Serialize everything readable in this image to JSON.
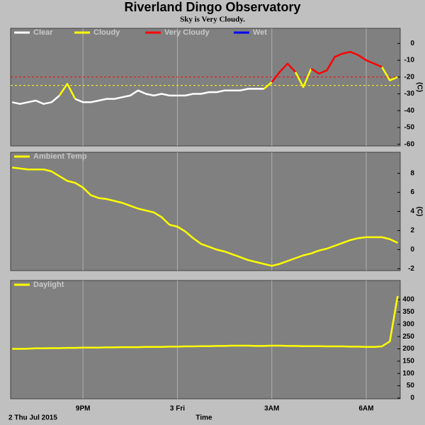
{
  "chart_data": [
    {
      "type": "line",
      "title": "Riverland Dingo Observatory",
      "subtitle": "Sky is Very Cloudy.",
      "ylabel": "(C)",
      "x": [
        -5.25,
        -5,
        -4.75,
        -4.5,
        -4.25,
        -4,
        -3.75,
        -3.5,
        -3.25,
        -3,
        -2.75,
        -2.5,
        -2.25,
        -2,
        -1.75,
        -1.5,
        -1.25,
        -1,
        -0.75,
        -0.5,
        -0.25,
        0,
        0.25,
        0.5,
        0.75,
        1,
        1.25,
        1.5,
        1.75,
        2,
        2.25,
        2.5,
        2.75,
        3,
        3.25,
        3.5,
        3.75,
        4,
        4.25,
        4.5,
        4.75,
        5,
        5.25,
        5.5,
        5.75,
        6,
        6.25,
        6.5,
        6.75,
        7
      ],
      "series": [
        {
          "name": "Clear",
          "color": "#ffffff",
          "values": [
            -35,
            -36,
            -35,
            -34,
            -36,
            -35,
            -31,
            null,
            -33,
            -35,
            -35,
            -34,
            -33,
            -33,
            -32,
            -31,
            -28,
            -30,
            -31,
            -30,
            -31,
            -31,
            -31,
            -30,
            -30,
            -29,
            -29,
            -28,
            -28,
            -28,
            -27,
            -27,
            -27,
            null,
            null,
            null,
            null,
            null,
            null,
            null,
            null,
            null,
            null,
            null,
            null,
            null,
            null,
            null,
            null,
            null
          ]
        },
        {
          "name": "Cloudy",
          "color": "#ffff00",
          "values": [
            null,
            null,
            null,
            null,
            null,
            null,
            -31,
            -24,
            -33,
            null,
            null,
            null,
            null,
            null,
            null,
            null,
            null,
            null,
            null,
            null,
            null,
            null,
            null,
            null,
            null,
            null,
            null,
            null,
            null,
            null,
            null,
            null,
            -27,
            -23,
            null,
            null,
            -17,
            -26,
            -15,
            null,
            null,
            null,
            null,
            null,
            null,
            null,
            null,
            -14,
            -22,
            -20
          ]
        },
        {
          "name": "Very Cloudy",
          "color": "#ff0000",
          "values": [
            null,
            null,
            null,
            null,
            null,
            null,
            null,
            null,
            null,
            null,
            null,
            null,
            null,
            null,
            null,
            null,
            null,
            null,
            null,
            null,
            null,
            null,
            null,
            null,
            null,
            null,
            null,
            null,
            null,
            null,
            null,
            null,
            null,
            -23,
            -17,
            -12,
            -17,
            null,
            -15,
            -18,
            -16,
            -8,
            -6,
            -5,
            -7,
            -10,
            -12,
            -14,
            null,
            -20
          ]
        },
        {
          "name": "Wet",
          "color": "#0000ff",
          "values": [
            null,
            null,
            null,
            null,
            null,
            null,
            null,
            null,
            null,
            null,
            null,
            null,
            null,
            null,
            null,
            null,
            null,
            null,
            null,
            null,
            null,
            null,
            null,
            null,
            null,
            null,
            null,
            null,
            null,
            null,
            null,
            null,
            null,
            null,
            null,
            null,
            null,
            null,
            null,
            null,
            null,
            null,
            null,
            null,
            null,
            null,
            null,
            null,
            null,
            null
          ]
        }
      ],
      "thresholds": [
        {
          "value": -20,
          "color": "#ff0000"
        },
        {
          "value": -25,
          "color": "#ffff00"
        }
      ],
      "ylim": [
        -61,
        9
      ],
      "yticks": [
        0,
        -10,
        -20,
        -30,
        -40,
        -50,
        -60
      ]
    },
    {
      "type": "line",
      "ylabel": "(C)",
      "xlabel": "Time",
      "date_label": "2 Thu Jul 2015",
      "xlim": [
        -5.3,
        7.08
      ],
      "xticks": [
        {
          "value": -3,
          "label": "9PM"
        },
        {
          "value": 0,
          "label": "3 Fri"
        },
        {
          "value": 3,
          "label": "3AM"
        },
        {
          "value": 6,
          "label": "6AM"
        }
      ],
      "x": [
        -5.25,
        -5,
        -4.75,
        -4.5,
        -4.25,
        -4,
        -3.75,
        -3.5,
        -3.25,
        -3,
        -2.75,
        -2.5,
        -2.25,
        -2,
        -1.75,
        -1.5,
        -1.25,
        -1,
        -0.75,
        -0.5,
        -0.25,
        0,
        0.25,
        0.5,
        0.75,
        1,
        1.25,
        1.5,
        1.75,
        2,
        2.25,
        2.5,
        2.75,
        3,
        3.25,
        3.5,
        3.75,
        4,
        4.25,
        4.5,
        4.75,
        5,
        5.25,
        5.5,
        5.75,
        6,
        6.25,
        6.5,
        6.75,
        7
      ],
      "series": [
        {
          "name": "Ambient Temp",
          "color": "#ffff00",
          "values": [
            8.6,
            8.5,
            8.4,
            8.4,
            8.4,
            8.2,
            7.7,
            7.2,
            7.0,
            6.5,
            5.7,
            5.4,
            5.3,
            5.1,
            4.9,
            4.6,
            4.3,
            4.1,
            3.9,
            3.4,
            2.6,
            2.4,
            1.9,
            1.2,
            0.6,
            0.3,
            0.0,
            -0.2,
            -0.5,
            -0.8,
            -1.1,
            -1.3,
            -1.5,
            -1.7,
            -1.5,
            -1.2,
            -0.9,
            -0.6,
            -0.4,
            -0.1,
            0.1,
            0.4,
            0.7,
            1.0,
            1.2,
            1.3,
            1.3,
            1.3,
            1.1,
            0.7
          ]
        }
      ],
      "ylim": [
        -2.2,
        10.2
      ],
      "yticks": [
        8,
        6,
        4,
        2,
        0,
        -2
      ]
    },
    {
      "type": "line",
      "x": [
        -5.25,
        -5,
        -4.75,
        -4.5,
        -4.25,
        -4,
        -3.75,
        -3.5,
        -3.25,
        -3,
        -2.75,
        -2.5,
        -2.25,
        -2,
        -1.75,
        -1.5,
        -1.25,
        -1,
        -0.75,
        -0.5,
        -0.25,
        0,
        0.25,
        0.5,
        0.75,
        1,
        1.25,
        1.5,
        1.75,
        2,
        2.25,
        2.5,
        2.75,
        3,
        3.25,
        3.5,
        3.75,
        4,
        4.25,
        4.5,
        4.75,
        5,
        5.25,
        5.5,
        5.75,
        6,
        6.25,
        6.5,
        6.75,
        7
      ],
      "series": [
        {
          "name": "Daylight",
          "color": "#ffff00",
          "values": [
            200,
            200,
            201,
            202,
            202,
            203,
            203,
            204,
            204,
            205,
            205,
            205,
            206,
            206,
            207,
            207,
            207,
            208,
            208,
            208,
            209,
            209,
            210,
            210,
            211,
            211,
            212,
            212,
            213,
            213,
            213,
            212,
            212,
            213,
            213,
            212,
            212,
            211,
            211,
            211,
            210,
            210,
            210,
            209,
            209,
            208,
            208,
            210,
            230,
            415
          ]
        }
      ],
      "ylim": [
        -3,
        478
      ],
      "yticks": [
        400,
        350,
        300,
        250,
        200,
        150,
        100,
        50,
        0
      ]
    }
  ]
}
